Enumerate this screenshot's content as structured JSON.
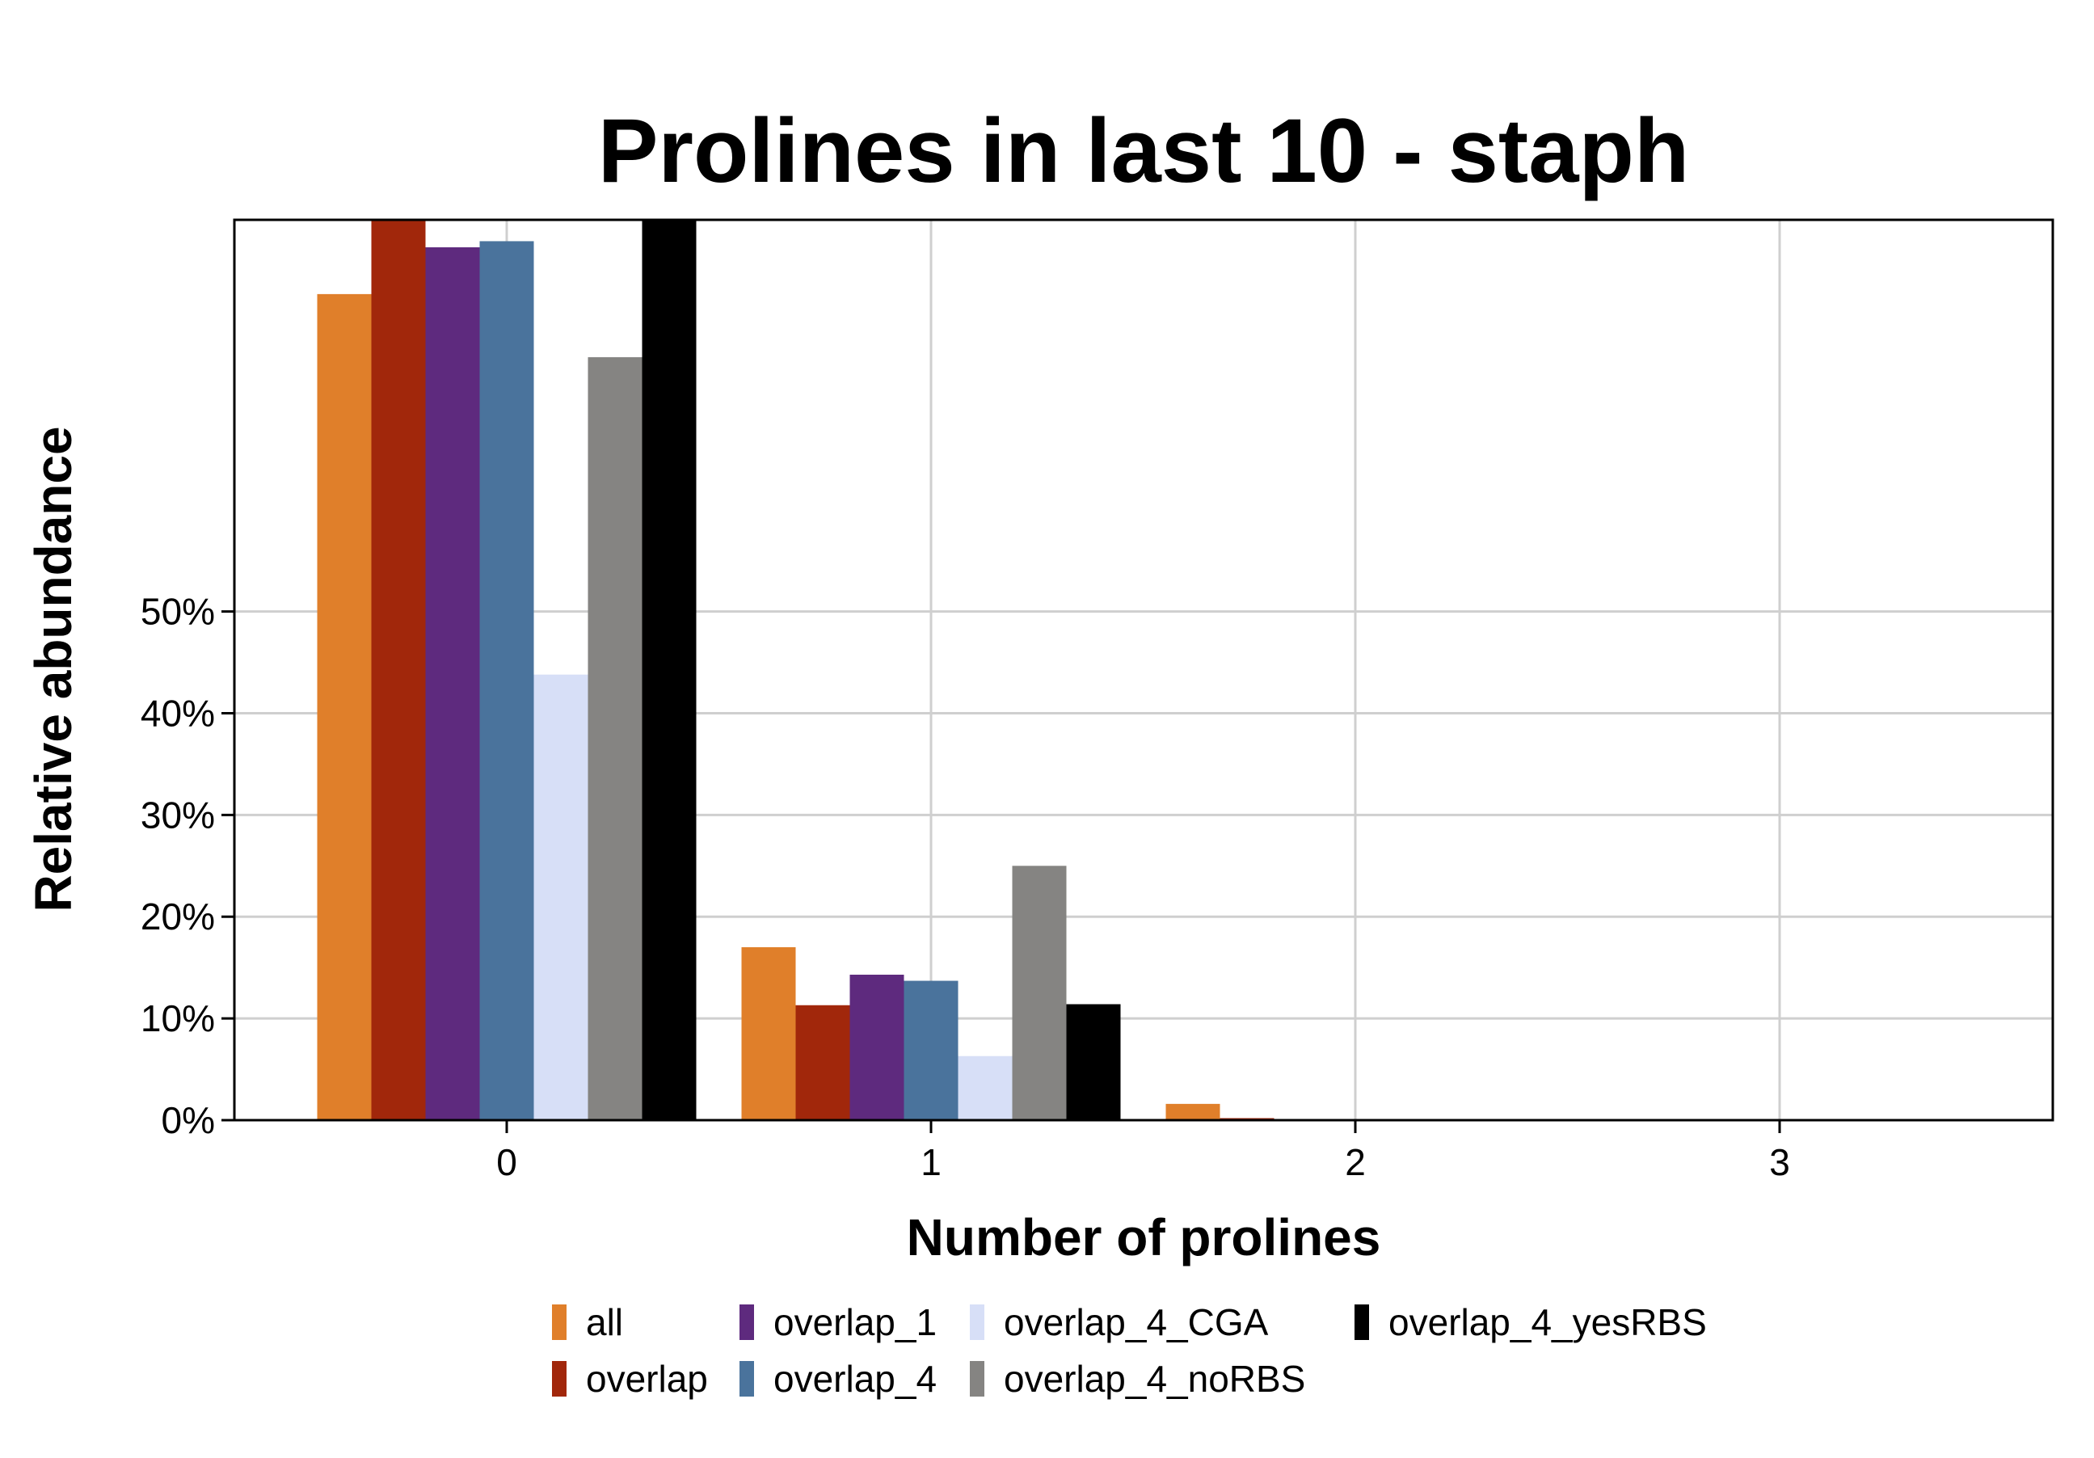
{
  "chart_data": {
    "type": "bar",
    "title": "Prolines in last 10 - staph",
    "xlabel": "Number of prolines",
    "ylabel": "Relative abundance",
    "categories": [
      "0",
      "1",
      "2",
      "3"
    ],
    "ylim": [
      0,
      88.5
    ],
    "yticks": [
      0,
      10,
      20,
      30,
      40,
      50
    ],
    "ytick_labels": [
      "0%",
      "10%",
      "20%",
      "30%",
      "40%",
      "50%"
    ],
    "grid": true,
    "legend_position": "bottom",
    "series": [
      {
        "name": "all",
        "color": "#e07f2a",
        "values": [
          81.2,
          17.0,
          1.6,
          0.1
        ]
      },
      {
        "name": "overlap",
        "color": "#a1270b",
        "values": [
          88.5,
          11.3,
          0.2,
          0.0
        ]
      },
      {
        "name": "overlap_1",
        "color": "#5e2a7e",
        "values": [
          85.8,
          14.3,
          0.0,
          0.0
        ]
      },
      {
        "name": "overlap_4",
        "color": "#4a739c",
        "values": [
          86.4,
          13.7,
          0.0,
          0.0
        ]
      },
      {
        "name": "overlap_4_CGA",
        "color": "#d7dff7",
        "values": [
          43.8,
          6.3,
          0.0,
          0.0
        ]
      },
      {
        "name": "overlap_4_noRBS",
        "color": "#858482",
        "values": [
          75.0,
          25.0,
          0.0,
          0.0
        ]
      },
      {
        "name": "overlap_4_yesRBS",
        "color": "#000000",
        "values": [
          88.5,
          11.4,
          0.0,
          0.0
        ]
      }
    ]
  }
}
